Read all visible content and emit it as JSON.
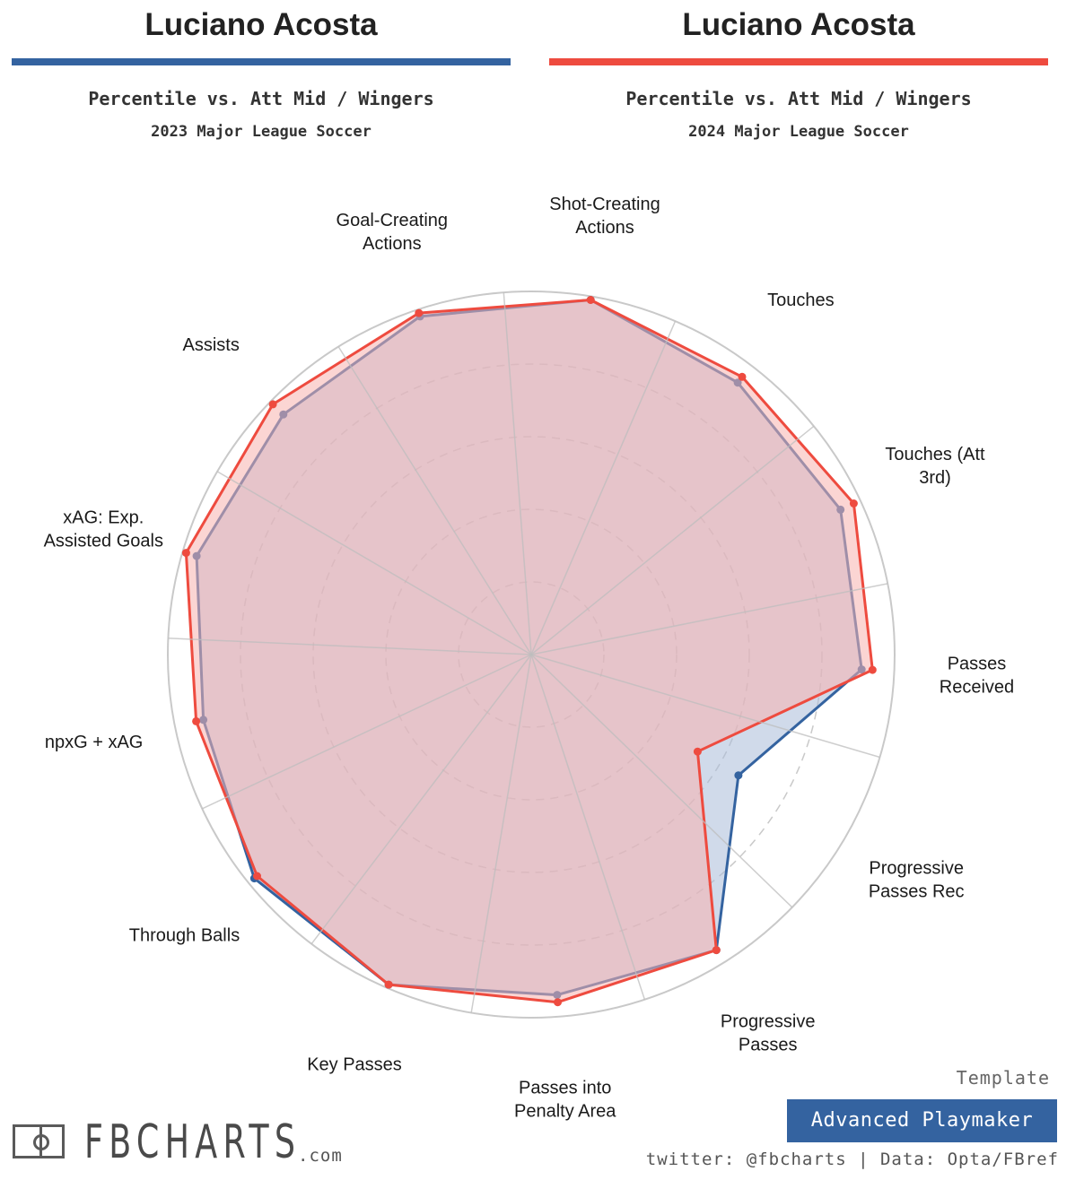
{
  "header": {
    "left": {
      "player": "Luciano Acosta",
      "subtitle": "Percentile vs. Att Mid / Wingers",
      "league": "2023 Major League Soccer",
      "color": "#3463a0"
    },
    "right": {
      "player": "Luciano Acosta",
      "subtitle": "Percentile vs. Att Mid / Wingers",
      "league": "2024 Major League Soccer",
      "color": "#ee4b3f"
    }
  },
  "chart_data": {
    "type": "radar",
    "rlim": [
      0,
      100
    ],
    "grid": true,
    "categories": [
      "Shot-Creating Actions",
      "Touches",
      "Touches (Att 3rd)",
      "Passes Received",
      "Progressive Passes Rec",
      "Progressive Passes",
      "Passes into Penalty Area",
      "Key Passes",
      "Through Balls",
      "npxG + xAG",
      "xAG: Exp. Assisted Goals",
      "Assists",
      "Goal-Creating Actions"
    ],
    "category_lines": [
      [
        "Shot-Creating",
        "Actions"
      ],
      [
        "Touches"
      ],
      [
        "Touches (Att",
        "3rd)"
      ],
      [
        "Passes",
        "Received"
      ],
      [
        "Progressive",
        "Passes Rec"
      ],
      [
        "Progressive",
        "Passes"
      ],
      [
        "Passes into",
        "Penalty Area"
      ],
      [
        "Key Passes"
      ],
      [
        "Through Balls"
      ],
      [
        "npxG + xAG"
      ],
      [
        "xAG: Exp.",
        "Assisted Goals"
      ],
      [
        "Assists"
      ],
      [
        "Goal-Creating",
        "Actions"
      ]
    ],
    "series": [
      {
        "color": "#3463a0",
        "fill": "#a9bcd9",
        "values": [
          99,
          94,
          94,
          91,
          66,
          96,
          94,
          99,
          98,
          92,
          96,
          95,
          98
        ]
      },
      {
        "color": "#ee4b3f",
        "fill": "#f7b3ae",
        "values": [
          99,
          96,
          98,
          94,
          53,
          96,
          96,
          99,
          97,
          94,
          99,
          99,
          99
        ]
      }
    ]
  },
  "footer": {
    "brand": "FBCHARTS",
    "brand_suffix": ".com",
    "template_label": "Template",
    "template_name": "Advanced Playmaker",
    "template_color": "#3463a0",
    "credits": "twitter: @fbcharts | Data: Opta/FBref"
  }
}
